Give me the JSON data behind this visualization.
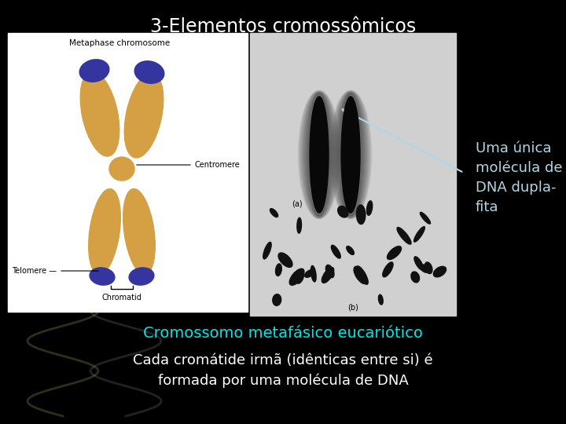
{
  "background_color": "#000000",
  "title": "3-Elementos cromossômicos",
  "title_color": "#ffffff",
  "title_fontsize": 17,
  "label_uma_unica": "Uma única\nmolécula de\nDNA dupla-\nfita",
  "label_uma_unica_color": "#add8e6",
  "label_uma_unica_fontsize": 13,
  "label_cromossomo": "Cromossomo metafásico eucariótico",
  "label_cromossomo_color": "#00e5e5",
  "label_cromossomo_fontsize": 14,
  "label_cada": "Cada cromátide irmã (idênticas entre si) é\nformada por uma molécula de DNA",
  "label_cada_color": "#ffffff",
  "label_cada_fontsize": 13,
  "chrom_color": "#D4A043",
  "blue_tip_color": "#3535A0",
  "left_box_color": "#ffffff",
  "right_box_color": "#d0d0d0",
  "arrow_color": "#add8e6"
}
